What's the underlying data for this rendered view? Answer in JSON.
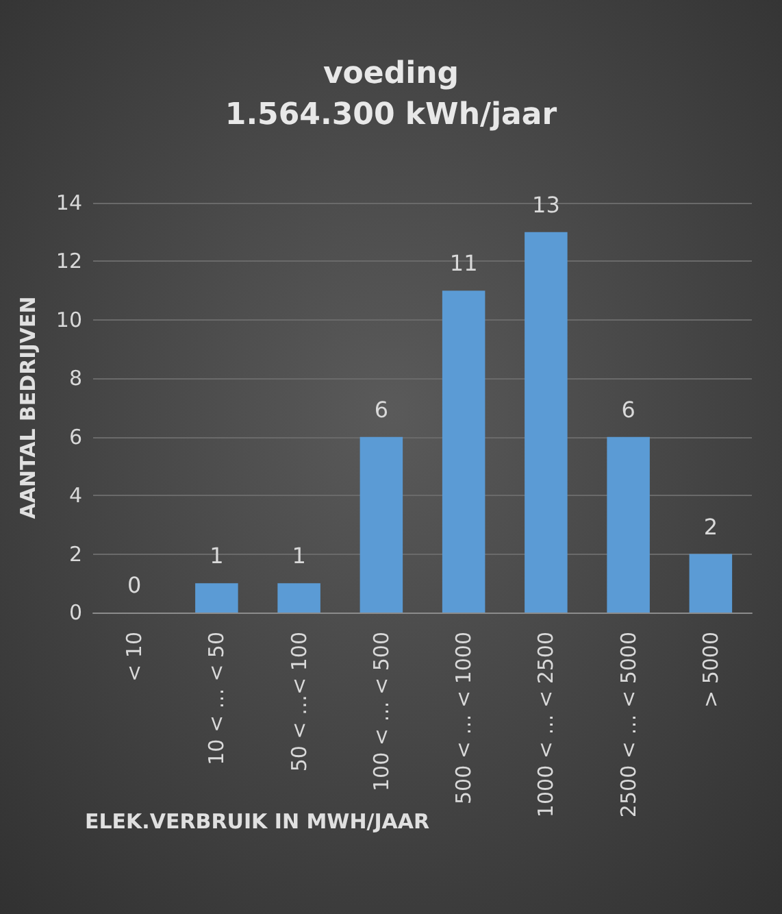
{
  "chart_data": {
    "type": "bar",
    "title": "voeding",
    "subtitle": "1.564.300 kWh/jaar",
    "xlabel": "ELEK.VERBRUIK IN MWH/JAAR",
    "ylabel": "AANTAL BEDRIJVEN",
    "categories": [
      "< 10",
      "10 < … < 50",
      "50 < …< 100",
      "100 < … < 500",
      "500 < … < 1000",
      "1000 < … < 2500",
      "2500 < … < 5000",
      "> 5000"
    ],
    "values": [
      0,
      1,
      1,
      6,
      11,
      13,
      6,
      2
    ],
    "color": "#5b9bd5",
    "ylim": [
      0,
      14
    ],
    "yticks": [
      0,
      2,
      4,
      6,
      8,
      10,
      12,
      14
    ],
    "grid": "y",
    "data_labels": true
  }
}
